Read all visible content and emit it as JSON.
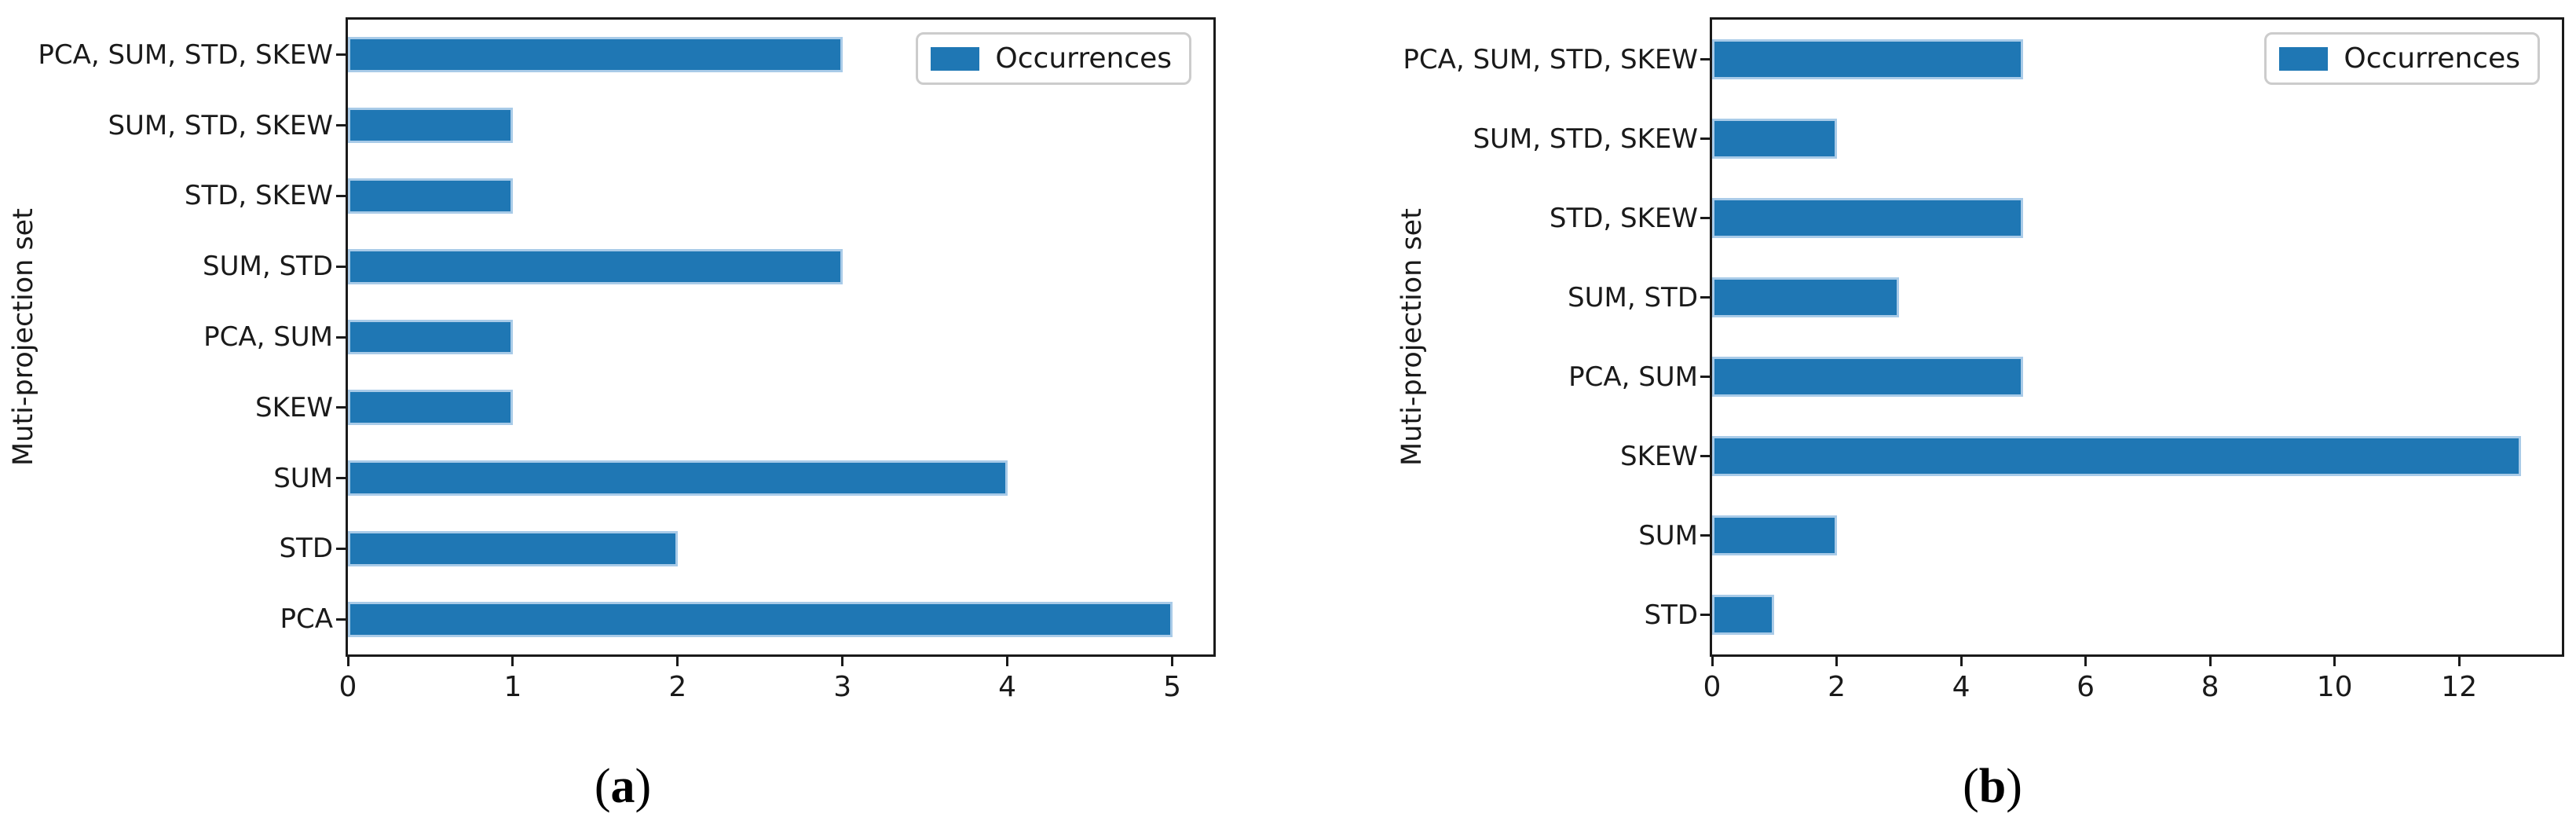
{
  "colors": {
    "bar": "#1f77b4",
    "bar_edge": "#a9cbe8",
    "spine": "#1a1a1a",
    "text": "#1a1a1a",
    "legend_border": "#cccccc",
    "background": "#ffffff"
  },
  "chart_data": [
    {
      "type": "bar",
      "orientation": "horizontal",
      "title": "",
      "xlabel": "",
      "ylabel": "Muti-projection set",
      "legend": [
        "Occurrences"
      ],
      "legend_position": "upper right",
      "grid": false,
      "categories_top_to_bottom": [
        "PCA, SUM, STD, SKEW",
        "SUM, STD, SKEW",
        "STD, SKEW",
        "SUM, STD",
        "PCA, SUM",
        "SKEW",
        "SUM",
        "STD",
        "PCA"
      ],
      "values": [
        3,
        1,
        1,
        3,
        1,
        1,
        4,
        2,
        5
      ],
      "xticks": [
        0,
        1,
        2,
        3,
        4,
        5
      ],
      "xlim": [
        0,
        5.25
      ],
      "bar_color": "#1f77b4",
      "caption_open": "(",
      "caption_letter": "a",
      "caption_close": ")"
    },
    {
      "type": "bar",
      "orientation": "horizontal",
      "title": "",
      "xlabel": "",
      "ylabel": "Muti-projection set",
      "legend": [
        "Occurrences"
      ],
      "legend_position": "upper right",
      "grid": false,
      "categories_top_to_bottom": [
        "PCA, SUM, STD, SKEW",
        "SUM, STD, SKEW",
        "STD, SKEW",
        "SUM, STD",
        "PCA, SUM",
        "SKEW",
        "SUM",
        "STD"
      ],
      "values": [
        5,
        2,
        5,
        3,
        5,
        13,
        2,
        1
      ],
      "xticks": [
        0,
        2,
        4,
        6,
        8,
        10,
        12
      ],
      "xlim": [
        0,
        13.65
      ],
      "bar_color": "#1f77b4",
      "caption_open": "(",
      "caption_letter": "b",
      "caption_close": ")"
    }
  ]
}
